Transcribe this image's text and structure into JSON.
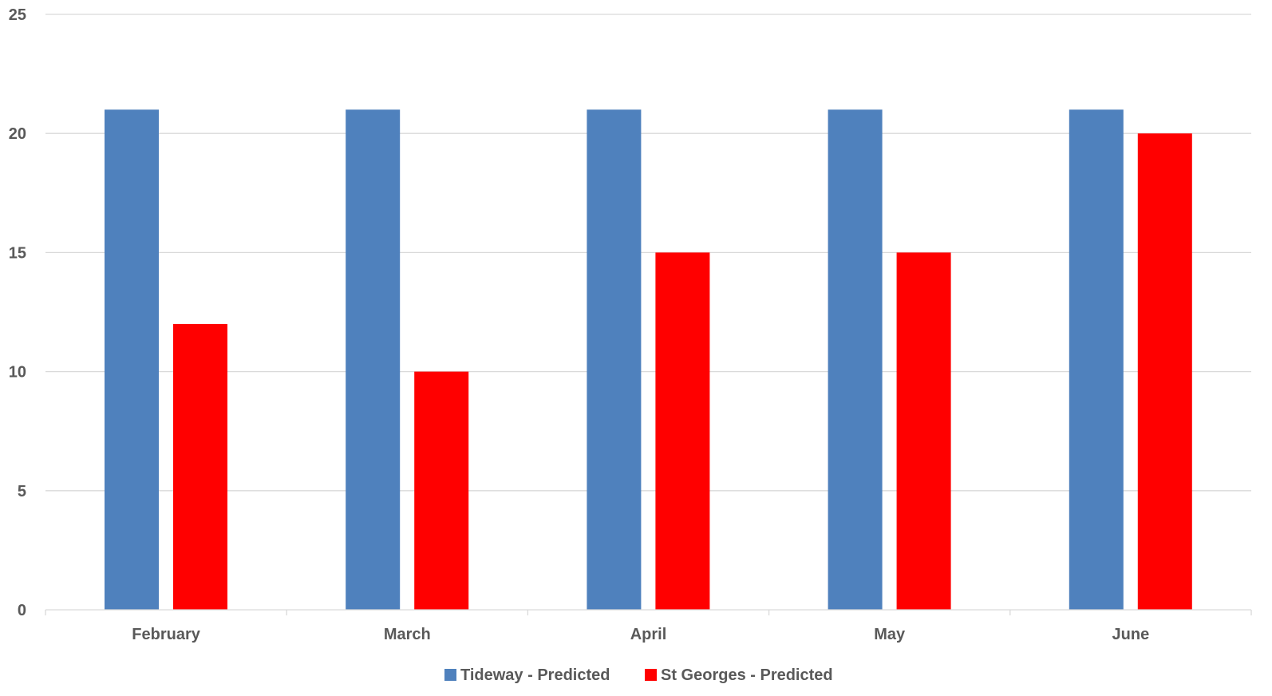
{
  "chart_data": {
    "type": "bar",
    "categories": [
      "February",
      "March",
      "April",
      "May",
      "June"
    ],
    "series": [
      {
        "name": "Tideway - Predicted",
        "color": "#4f81bd",
        "values": [
          21,
          21,
          21,
          21,
          21
        ]
      },
      {
        "name": "St Georges - Predicted",
        "color": "#ff0000",
        "values": [
          12,
          10,
          15,
          15,
          20
        ]
      }
    ],
    "title": "",
    "xlabel": "",
    "ylabel": "",
    "ylim": [
      0,
      25
    ],
    "yticks": [
      0,
      5,
      10,
      15,
      20,
      25
    ],
    "grid": true,
    "legend_position": "bottom"
  }
}
